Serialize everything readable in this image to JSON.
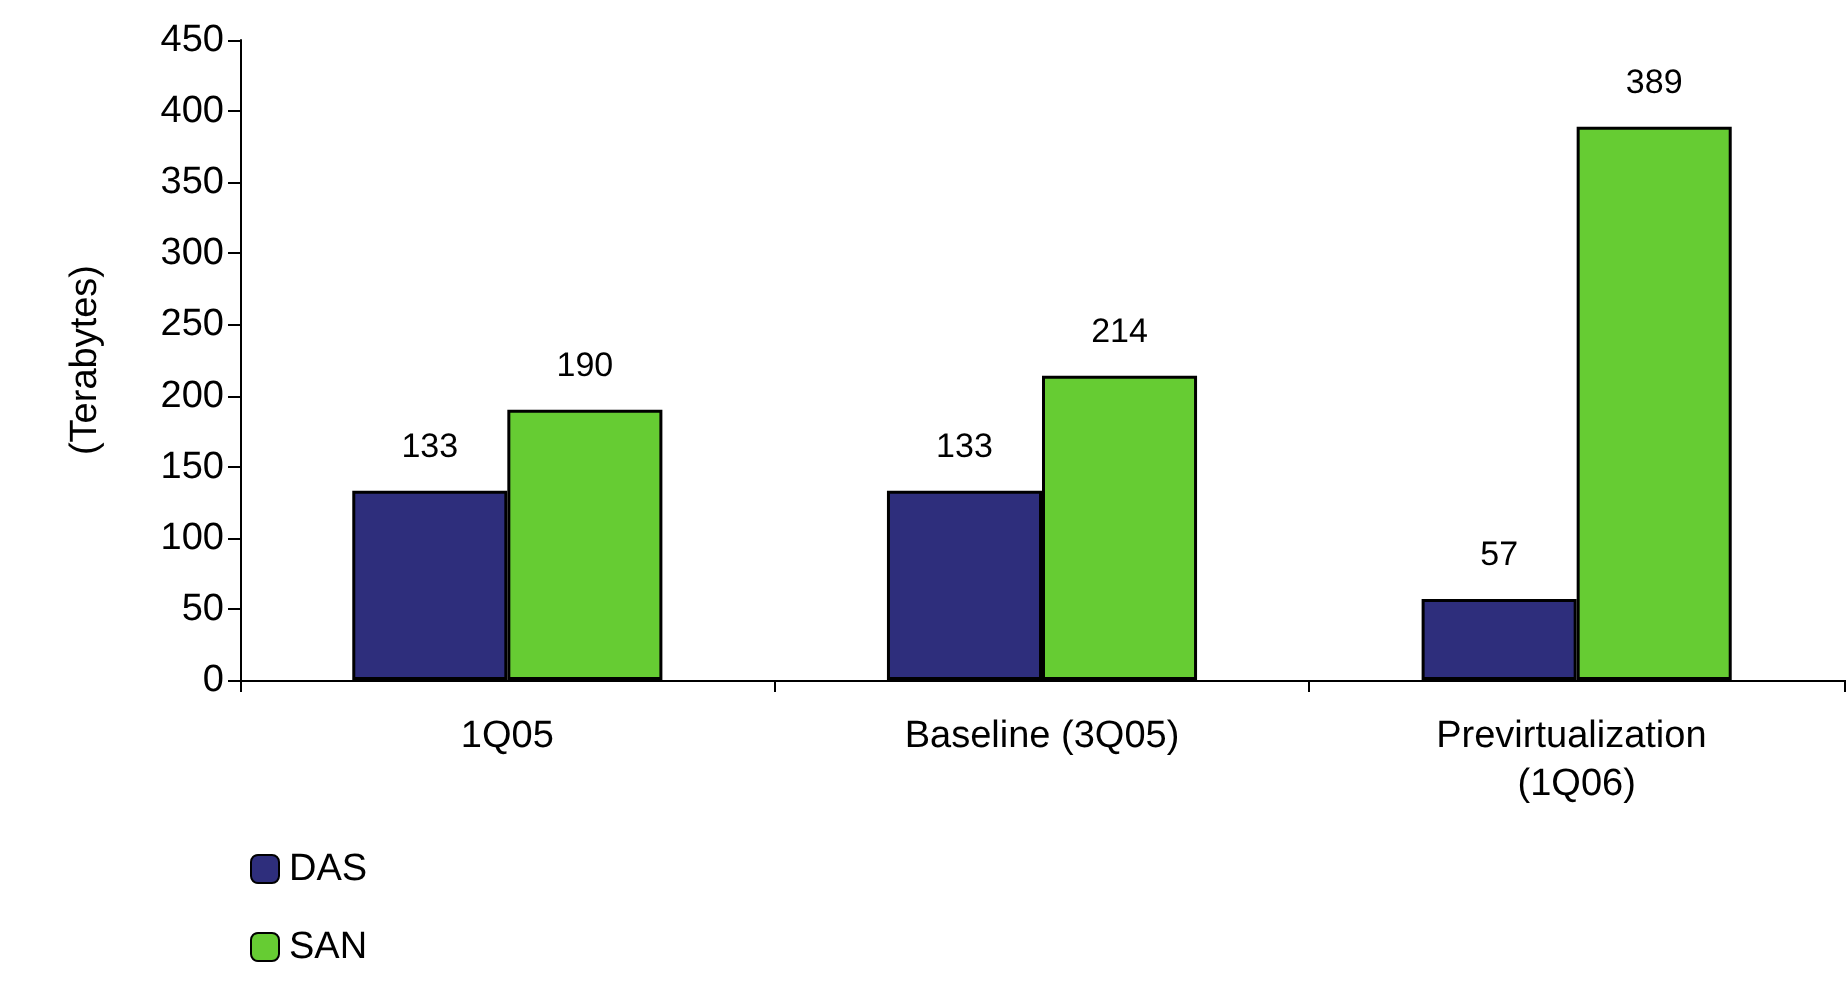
{
  "chart_data": {
    "type": "bar",
    "ylabel": "(Terabytes)",
    "categories": [
      "1Q05",
      "Baseline (3Q05)",
      "Previrtualization (1Q06)"
    ],
    "series": [
      {
        "name": "DAS",
        "color": "#2e2e7c",
        "values": [
          133,
          133,
          57
        ]
      },
      {
        "name": "SAN",
        "color": "#66cc33",
        "values": [
          190,
          214,
          389
        ]
      }
    ],
    "ylim": [
      0,
      450
    ],
    "yticks": [
      0,
      50,
      100,
      150,
      200,
      250,
      300,
      350,
      400,
      450
    ],
    "grid": false,
    "legend": "bottom left",
    "data_labels": true
  }
}
